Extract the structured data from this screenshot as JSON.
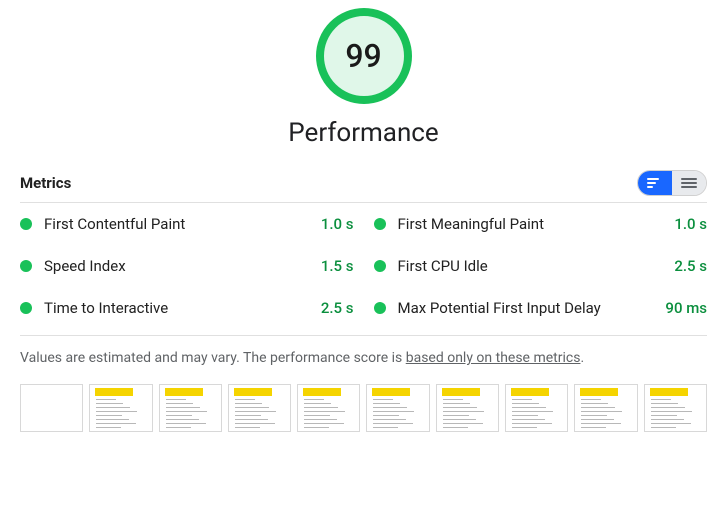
{
  "score": {
    "value": "99",
    "title": "Performance",
    "ring_color": "#19c159",
    "fill_color": "#e0f7e9"
  },
  "metrics_header": "Metrics",
  "metrics": [
    {
      "label": "First Contentful Paint",
      "value": "1.0 s"
    },
    {
      "label": "First Meaningful Paint",
      "value": "1.0 s"
    },
    {
      "label": "Speed Index",
      "value": "1.5 s"
    },
    {
      "label": "First CPU Idle",
      "value": "2.5 s"
    },
    {
      "label": "Time to Interactive",
      "value": "2.5 s"
    },
    {
      "label": "Max Potential First Input Delay",
      "value": "90 ms"
    }
  ],
  "note_prefix": "Values are estimated and may vary. The performance score is ",
  "note_link": "based only on these metrics",
  "note_suffix": ".",
  "metric_dot_color": "#19c159",
  "metric_value_color": "#0b8f3e",
  "thumbnail_count": 10
}
